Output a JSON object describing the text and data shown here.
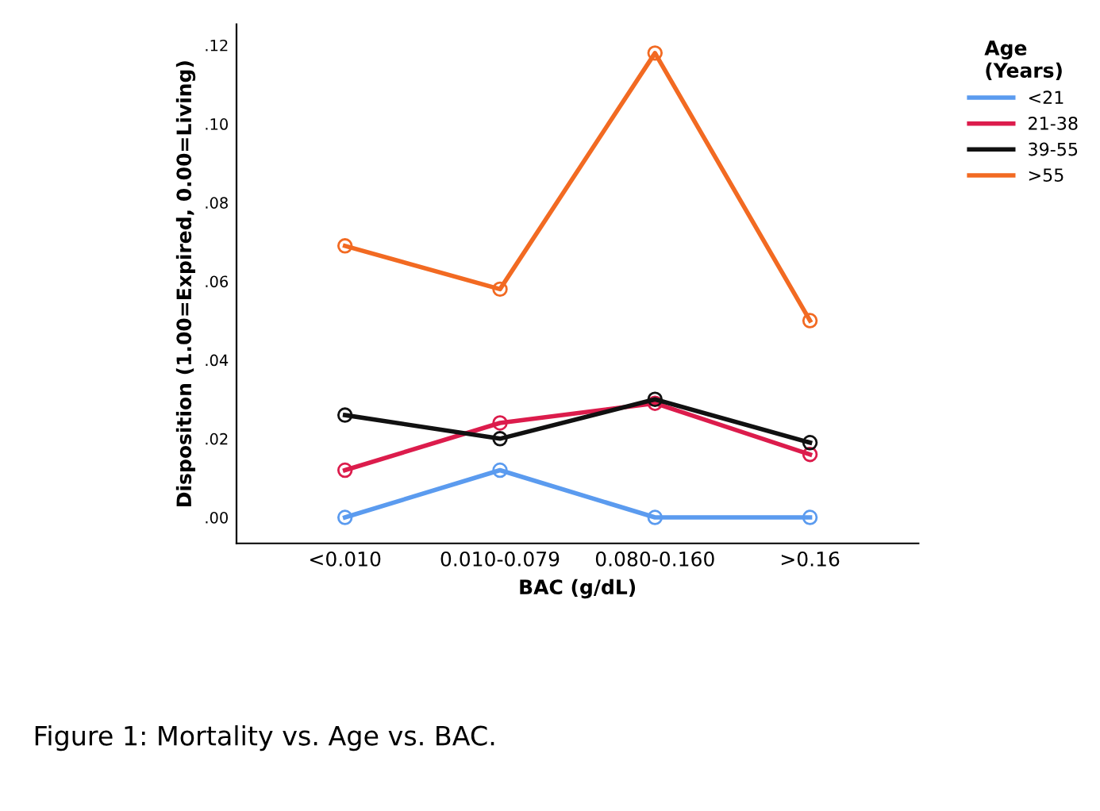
{
  "chart_data": {
    "type": "line",
    "xlabel": "BAC (g/dL)",
    "ylabel": "Disposition (1.00=Expired, 0.00=Living)",
    "legend_title": "Age\n(Years)",
    "categories": [
      "<0.010",
      "0.010-0.079",
      "0.080-0.160",
      ">0.16"
    ],
    "series": [
      {
        "name": "<21",
        "color": "#5b9bef",
        "values": [
          0.0,
          0.012,
          0.0,
          0.0
        ]
      },
      {
        "name": "21-38",
        "color": "#dc1c4c",
        "values": [
          0.012,
          0.024,
          0.029,
          0.016
        ]
      },
      {
        "name": "39-55",
        "color": "#111111",
        "values": [
          0.026,
          0.02,
          0.03,
          0.019
        ]
      },
      {
        "name": ">55",
        "color": "#f26a22",
        "values": [
          0.069,
          0.058,
          0.118,
          0.05
        ]
      }
    ],
    "ylim": [
      -0.0066,
      0.1253
    ],
    "yticks": [
      {
        "value": 0,
        "label": ".00"
      },
      {
        "value": 0.02,
        "label": ".02"
      },
      {
        "value": 0.04,
        "label": ".04"
      },
      {
        "value": 0.06,
        "label": ".06"
      },
      {
        "value": 0.08,
        "label": ".08"
      },
      {
        "value": 0.1,
        "label": ".10"
      },
      {
        "value": 0.12,
        "label": ".12"
      }
    ],
    "marker": "circle",
    "grid": false,
    "legend": "top right",
    "annotations": [
      "Figure 1: Mortality vs. Age vs. BAC."
    ]
  }
}
